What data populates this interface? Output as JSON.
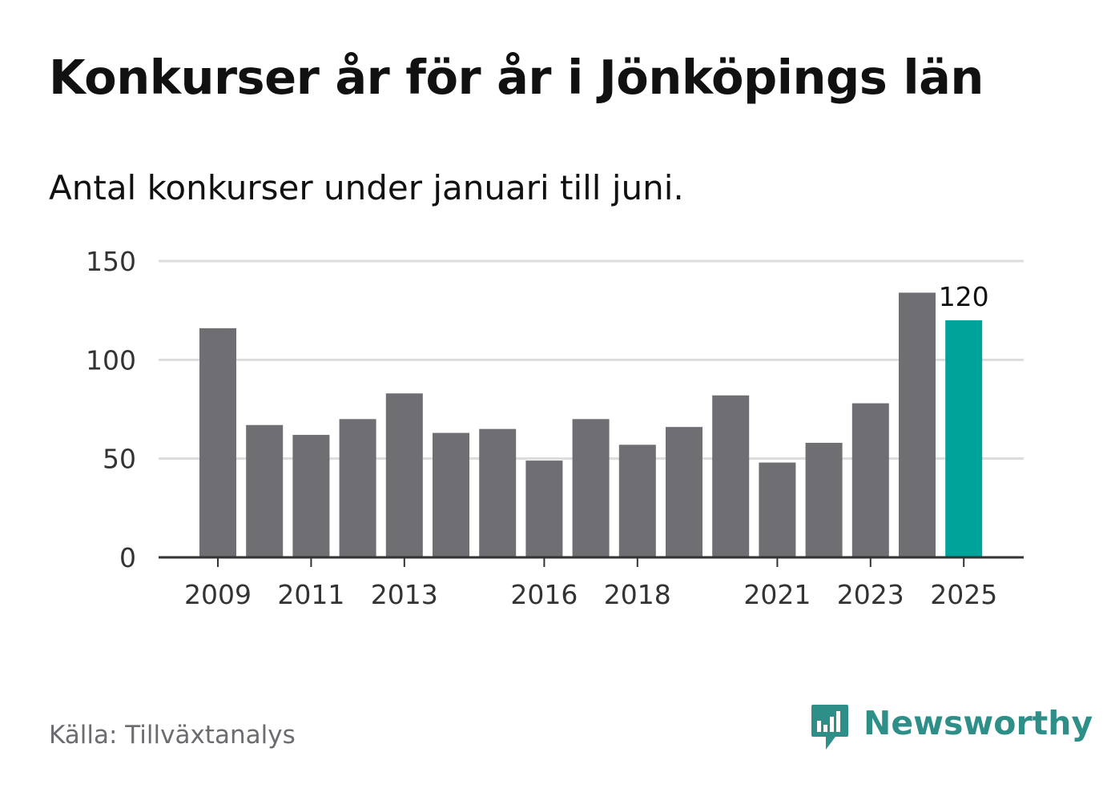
{
  "header": {
    "title": "Konkurser år för år i Jönköpings län",
    "subtitle": "Antal konkurser under januari till juni."
  },
  "footer": {
    "source": "Källa: Tillväxtanalys",
    "brand": "Newsworthy",
    "brand_icon": "newsworthy-logo-icon"
  },
  "colors": {
    "bar": "#6e6e73",
    "highlight": "#00a39a",
    "grid": "#dcdcdc",
    "axis": "#333333",
    "brand": "#2e8f89"
  },
  "chart_data": {
    "type": "bar",
    "categories": [
      "2009",
      "2010",
      "2011",
      "2012",
      "2013",
      "2014",
      "2015",
      "2016",
      "2017",
      "2018",
      "2019",
      "2020",
      "2021",
      "2022",
      "2023",
      "2024",
      "2025"
    ],
    "values": [
      116,
      67,
      62,
      70,
      83,
      63,
      65,
      49,
      70,
      57,
      66,
      82,
      48,
      58,
      78,
      134,
      120
    ],
    "highlight_category": "2025",
    "value_labels": [
      {
        "category": "2025",
        "text": "120"
      }
    ],
    "x_tick_labels": [
      "2009",
      "2011",
      "2013",
      "2016",
      "2018",
      "2021",
      "2023",
      "2025"
    ],
    "y_ticks": [
      0,
      50,
      100,
      150
    ],
    "ylim": [
      0,
      150
    ],
    "xlabel": "",
    "ylabel": "",
    "grid": true,
    "legend": "none"
  }
}
